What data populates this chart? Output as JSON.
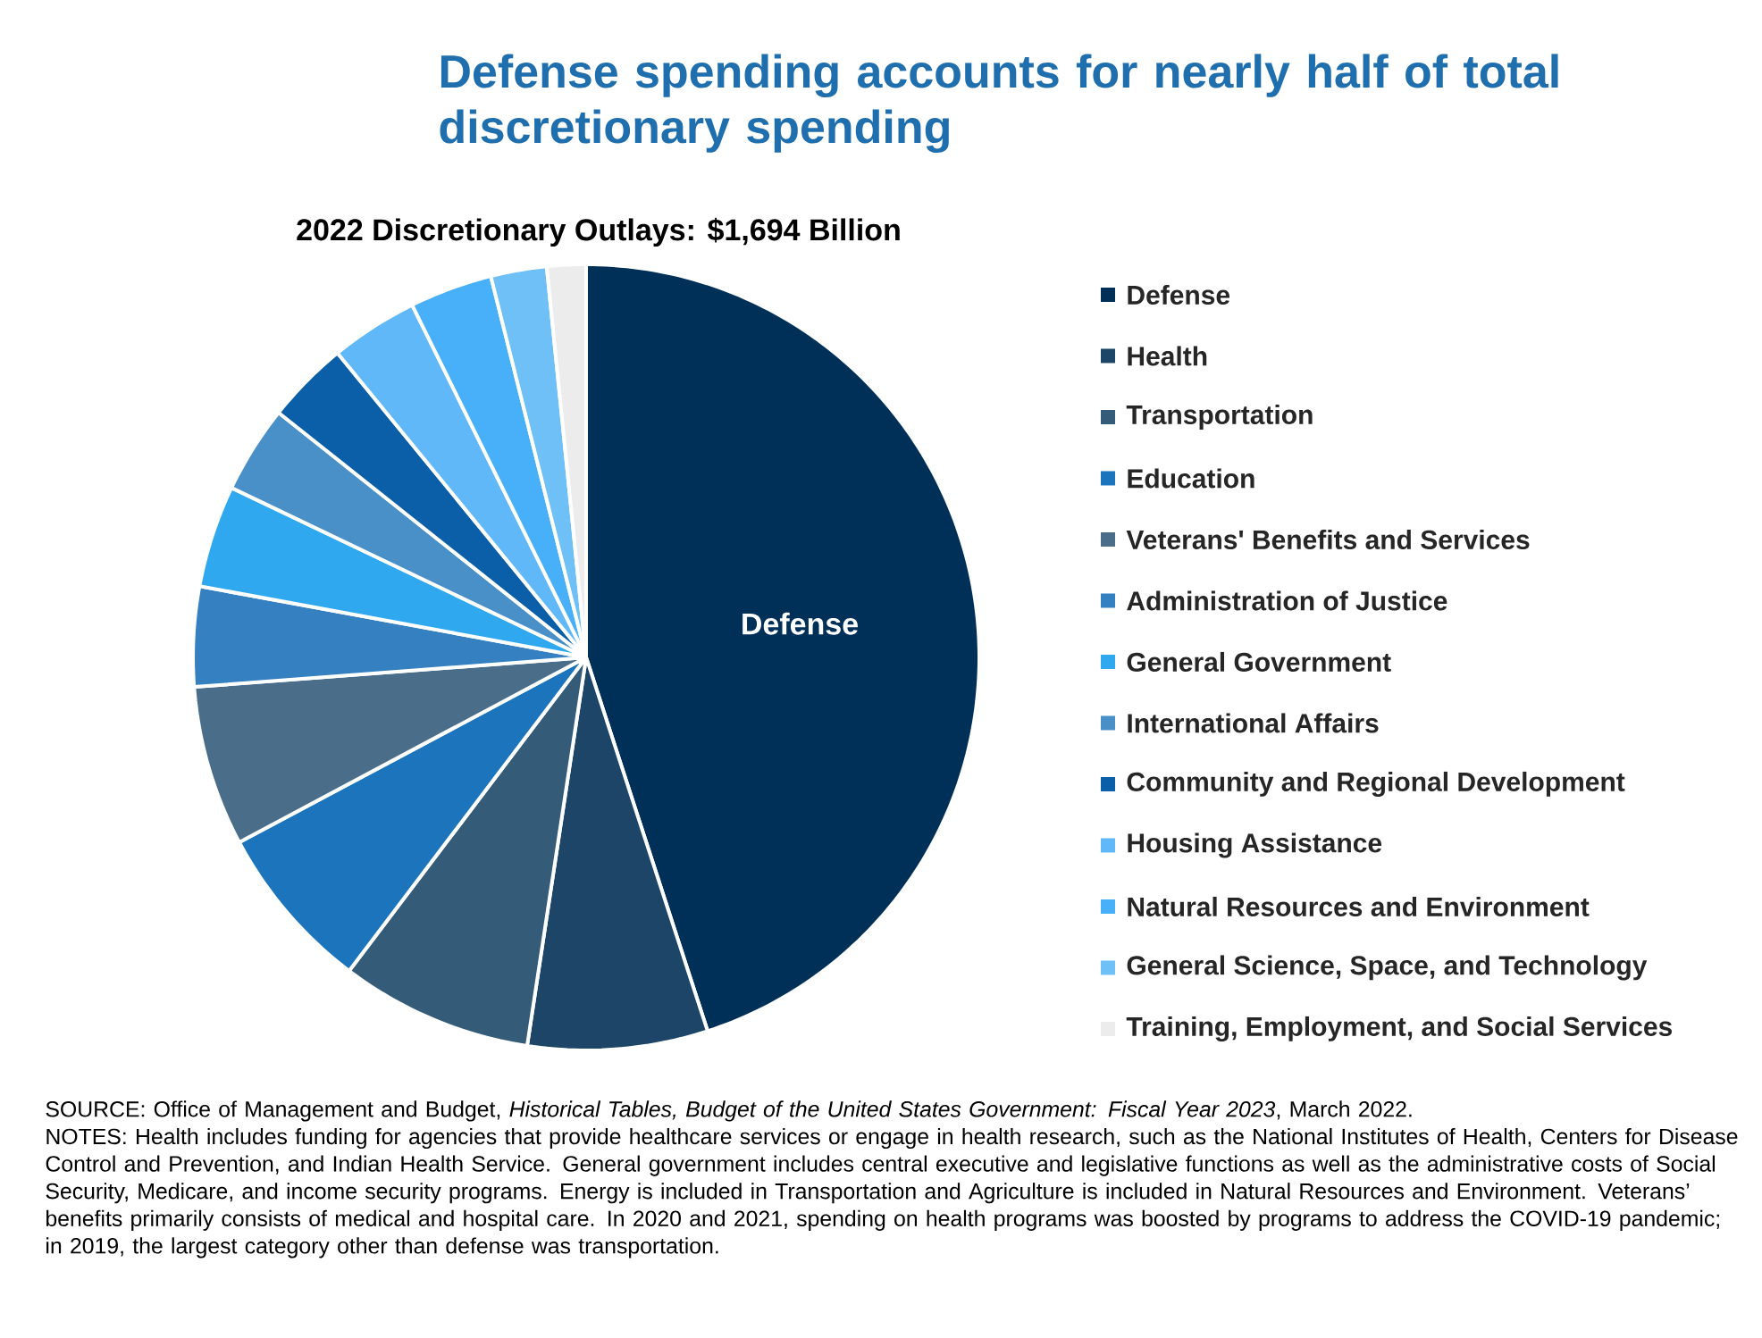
{
  "chart_data": {
    "type": "pie",
    "title": "Defense spending accounts for nearly half of total discretionary spending",
    "subtitle": "2022 Discretionary Outlays: $1,694 Billion",
    "categories": [
      "Defense",
      "Health",
      "Transportation",
      "Education",
      "Veterans' Benefits and Services",
      "Administration of Justice",
      "General Government",
      "International Affairs",
      "Community and Regional Development",
      "Housing Assistance",
      "Natural Resources and Environment",
      "General Science, Space, and Technology",
      "Training, Employment, and Social Services"
    ],
    "values": [
      45.0,
      7.4,
      7.9,
      6.9,
      6.6,
      4.1,
      4.2,
      3.6,
      3.4,
      3.6,
      3.4,
      2.3,
      1.6
    ],
    "colors": [
      "#003057",
      "#1d4567",
      "#345c78",
      "#1c75bc",
      "#4a6e8a",
      "#3580c0",
      "#30a8f0",
      "#4a90c8",
      "#0a5fa8",
      "#60b8f8",
      "#48b0f8",
      "#70c0f8",
      "#ececec"
    ],
    "legend": "right",
    "annotations": [
      "SOURCE: Office of Management and Budget, *Historical Tables, Budget of the United States Government: Fiscal Year 2023*, March 2022.",
      "NOTES: Health includes funding for agencies that provide healthcare services or engage in health research, such as the National Institutes of Health, Centers for Disease Control and Prevention, and Indian Health Service. General government includes central executive and legislative functions as well as the administrative costs of Social Security, Medicare, and income security programs. Energy is included in Transportation and Agriculture is included in Natural Resources and Environment. Veterans’ benefits primarily consists of medical and hospital care. In 2020 and 2021, spending on health programs was boosted by programs to address the COVID-19 pandemic; in 2019, the largest category other than defense was transportation."
    ]
  }
}
